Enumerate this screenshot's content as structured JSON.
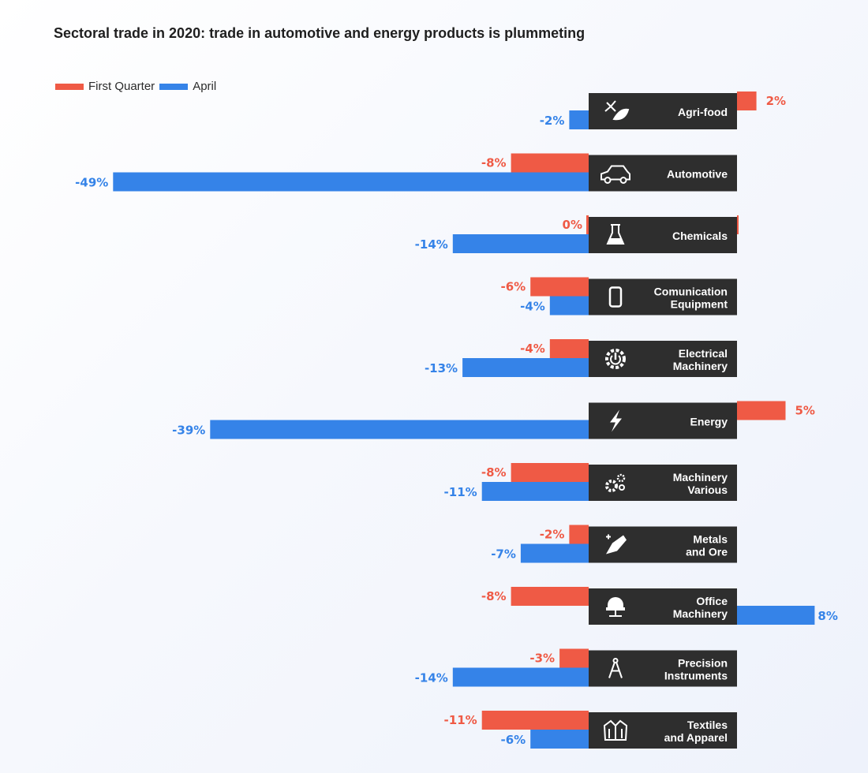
{
  "title": "Sectoral trade in 2020: trade in automotive and energy products is plummeting",
  "colors": {
    "first_quarter": "#ef5a45",
    "april": "#3583e8",
    "label_box": "#2e2e2e"
  },
  "chart_data": {
    "type": "bar",
    "orientation": "horizontal",
    "title": "Sectoral trade in 2020: trade in automotive and energy products is plummeting",
    "legend_position": "top-left",
    "grid": false,
    "categories": [
      {
        "lines": [
          "Agri-food"
        ],
        "icon": "agri-food-icon"
      },
      {
        "lines": [
          "Automotive"
        ],
        "icon": "car-icon"
      },
      {
        "lines": [
          "Chemicals"
        ],
        "icon": "flask-icon"
      },
      {
        "lines": [
          "Comunication",
          "Equipment"
        ],
        "icon": "phone-icon"
      },
      {
        "lines": [
          "Electrical",
          "Machinery"
        ],
        "icon": "power-gear-icon"
      },
      {
        "lines": [
          "Energy"
        ],
        "icon": "lightning-icon"
      },
      {
        "lines": [
          "Machinery",
          "Various"
        ],
        "icon": "gears-icon"
      },
      {
        "lines": [
          "Metals",
          "and Ore"
        ],
        "icon": "metal-bar-icon"
      },
      {
        "lines": [
          "Office",
          "Machinery"
        ],
        "icon": "office-chair-icon"
      },
      {
        "lines": [
          "Precision",
          "Instruments"
        ],
        "icon": "compass-icon"
      },
      {
        "lines": [
          "Textiles",
          "and Apparel"
        ],
        "icon": "shirt-icon"
      }
    ],
    "series": [
      {
        "name": "First Quarter",
        "color": "#ef5a45",
        "values": [
          2,
          -8,
          0,
          -6,
          -4,
          5,
          -8,
          -2,
          -8,
          -3,
          -11
        ],
        "labels": [
          "2%",
          "-8%",
          "0%",
          "-6%",
          "-4%",
          "5%",
          "-8%",
          "-2%",
          "-8%",
          "-3%",
          "-11%"
        ]
      },
      {
        "name": "April",
        "color": "#3583e8",
        "values": [
          -2,
          -49,
          -14,
          -4,
          -13,
          -39,
          -11,
          -7,
          8,
          -14,
          -6
        ],
        "labels": [
          "-2%",
          "-49%",
          "-14%",
          "-4%",
          "-13%",
          "-39%",
          "-11%",
          "-7%",
          "8%",
          "-14%",
          "-6%"
        ]
      }
    ]
  }
}
